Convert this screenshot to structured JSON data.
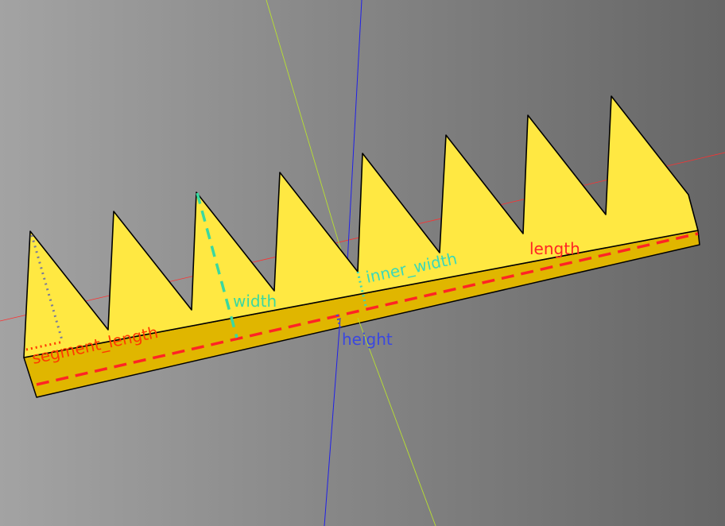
{
  "scene": {
    "background_colors": [
      "#a3a3a3",
      "#666666"
    ],
    "face_color": "#ffe842",
    "edge_band_color": "#e0b600",
    "outline_color": "#000000",
    "axes": {
      "x_color": "#ff3030",
      "y_color": "#b8e030",
      "z_color": "#2020e8"
    }
  },
  "labels": {
    "length": {
      "text": "length",
      "color": "#ff2424"
    },
    "width": {
      "text": "width",
      "color": "#3ad8a0"
    },
    "inner_width": {
      "text": "inner_width",
      "color": "#3ad8b8"
    },
    "height": {
      "text": "height",
      "color": "#3a48e0"
    },
    "segment_length": {
      "text": "segment_length",
      "color": "#ff3a00"
    }
  }
}
